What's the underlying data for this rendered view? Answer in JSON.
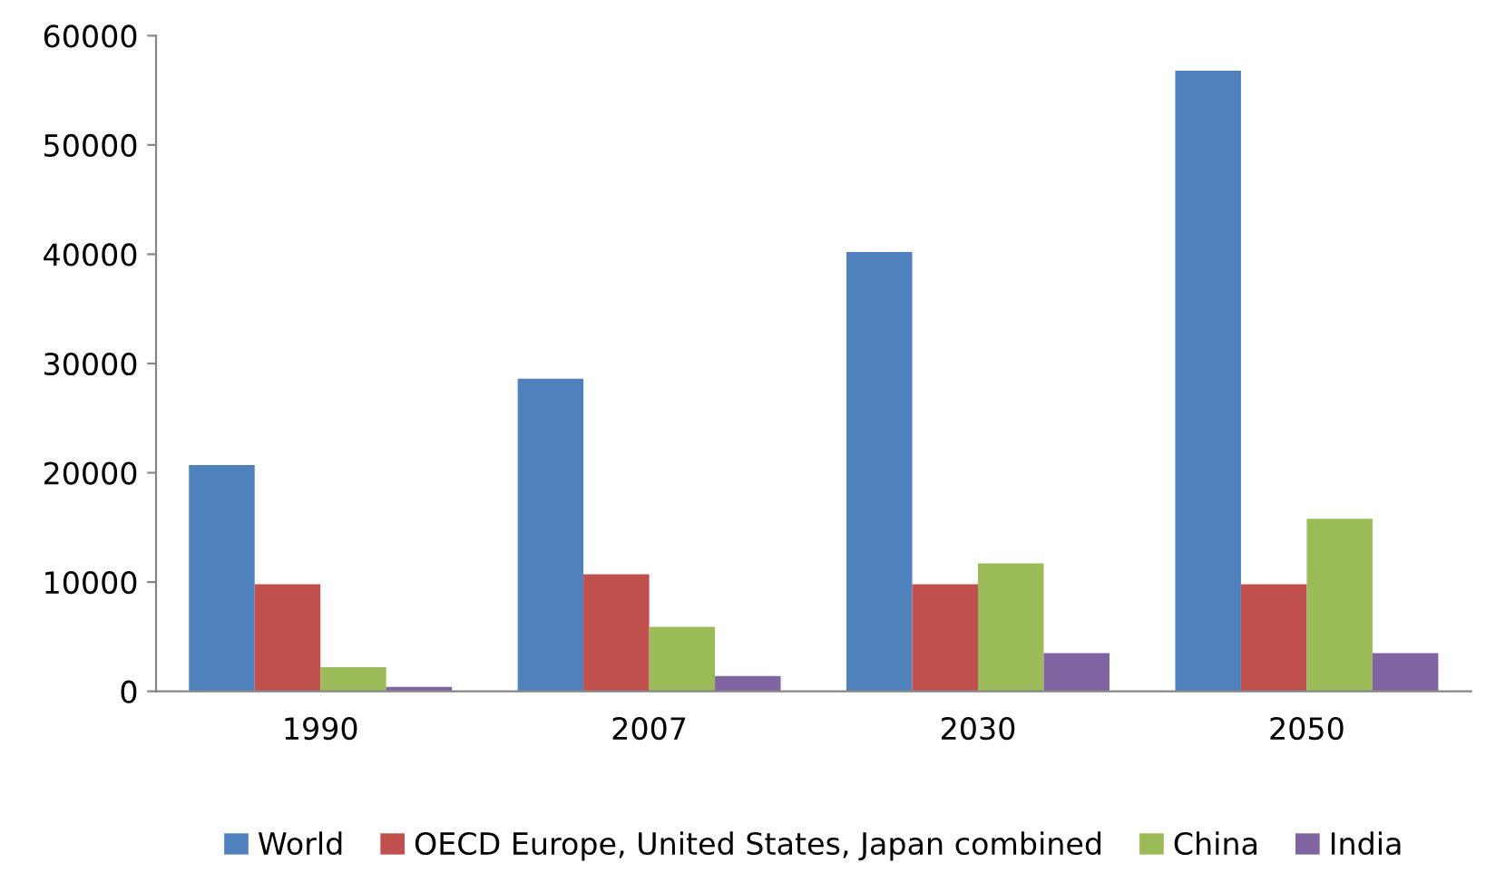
{
  "chart_data": {
    "type": "bar",
    "categories": [
      "1990",
      "2007",
      "2030",
      "2050"
    ],
    "series": [
      {
        "name": "World",
        "color": "#4f81bd",
        "values": [
          20700,
          28600,
          40200,
          56800
        ]
      },
      {
        "name": "OECD Europe, United States, Japan combined",
        "color": "#c0504d",
        "values": [
          9800,
          10700,
          9800,
          9800
        ]
      },
      {
        "name": "China",
        "color": "#9bbb59",
        "values": [
          2200,
          5900,
          11700,
          15800
        ]
      },
      {
        "name": "India",
        "color": "#8064a2",
        "values": [
          400,
          1400,
          3500,
          3500
        ]
      }
    ],
    "ylim": [
      0,
      60000
    ],
    "yticks": [
      0,
      10000,
      20000,
      30000,
      40000,
      50000,
      60000
    ],
    "grid": false,
    "legend": "bottom"
  }
}
